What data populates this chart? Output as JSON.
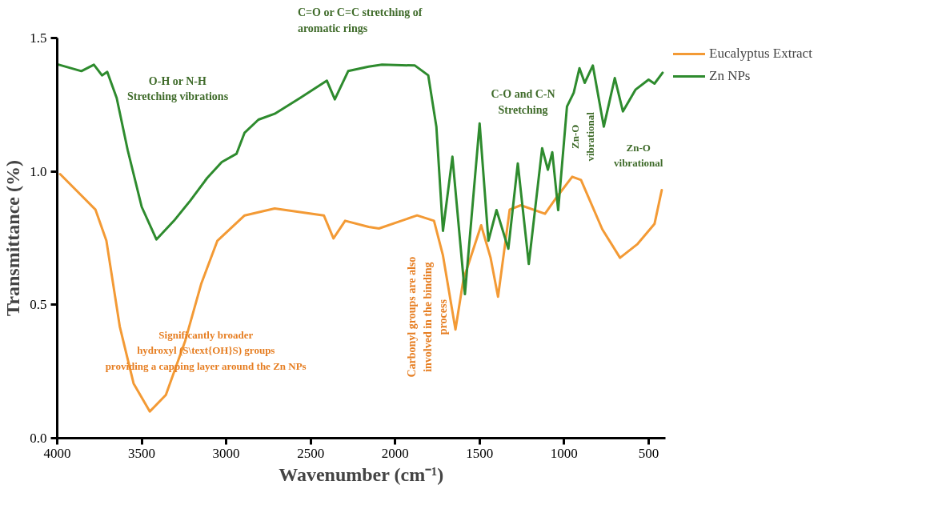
{
  "chart_data": {
    "type": "line",
    "xlabel": "Wavenumber (cm⁻¹)",
    "ylabel": "Transmittance (%)",
    "xlim": [
      4000,
      400
    ],
    "ylim": [
      0,
      1.5
    ],
    "xticks": [
      4000,
      3500,
      3000,
      2500,
      2000,
      1500,
      1000,
      500
    ],
    "yticks": [
      {
        "value": 0,
        "label": "0.0"
      },
      {
        "value": 0.5,
        "label": "0.5"
      },
      {
        "value": 1.0,
        "label": "1.0"
      },
      {
        "value": 1.5,
        "label": "1.5"
      }
    ],
    "grid": false,
    "legend": "top right",
    "line_style": "solid",
    "marker": "none",
    "series": [
      {
        "name": "Eucalyptus Extract",
        "color": "#f39a35",
        "x": [
          3983,
          3774,
          3709,
          3630,
          3548,
          3452,
          3357,
          3243,
          3148,
          3052,
          2891,
          2713,
          2422,
          2365,
          2296,
          2157,
          2096,
          1870,
          1770,
          1717,
          1643,
          1596,
          1491,
          1435,
          1391,
          1322,
          1256,
          1113,
          1048,
          952,
          900,
          774,
          669,
          565,
          465,
          422
        ],
        "values": [
          0.99,
          0.857,
          0.74,
          0.419,
          0.205,
          0.1,
          0.162,
          0.364,
          0.578,
          0.74,
          0.835,
          0.861,
          0.835,
          0.749,
          0.815,
          0.792,
          0.786,
          0.835,
          0.815,
          0.685,
          0.407,
          0.595,
          0.798,
          0.676,
          0.53,
          0.857,
          0.873,
          0.841,
          0.9,
          0.98,
          0.968,
          0.783,
          0.676,
          0.728,
          0.803,
          0.93
        ]
      },
      {
        "name": "Zn NPs",
        "color": "#2e8b2e",
        "x": [
          3990,
          3857,
          3783,
          3735,
          3704,
          3648,
          3583,
          3500,
          3413,
          3309,
          3213,
          3113,
          3026,
          2939,
          2891,
          2809,
          2713,
          2565,
          2404,
          2357,
          2278,
          2157,
          2078,
          1883,
          1804,
          1756,
          1717,
          1661,
          1587,
          1500,
          1448,
          1400,
          1330,
          1274,
          1209,
          1130,
          1096,
          1070,
          1035,
          983,
          943,
          909,
          878,
          830,
          765,
          700,
          652,
          578,
          500,
          465,
          417
        ],
        "values": [
          1.4,
          1.376,
          1.4,
          1.36,
          1.373,
          1.275,
          1.08,
          0.867,
          0.745,
          0.815,
          0.89,
          0.975,
          1.035,
          1.066,
          1.145,
          1.194,
          1.216,
          1.274,
          1.34,
          1.27,
          1.376,
          1.393,
          1.4,
          1.397,
          1.36,
          1.168,
          0.777,
          1.055,
          0.54,
          1.18,
          0.74,
          0.855,
          0.71,
          1.03,
          0.653,
          1.087,
          1.006,
          1.072,
          0.855,
          1.243,
          1.295,
          1.387,
          1.332,
          1.397,
          1.168,
          1.35,
          1.225,
          1.306,
          1.344,
          1.329,
          1.37
        ]
      }
    ],
    "annotations": [
      "O-H or N-H\nStretching vibrations",
      "Significantly broader\nhydroxyl (S\\text{OH}S) groups\nproviding a capping layer around the Zn NPs",
      "C=O  or C=C stretching of\naromatic rings",
      "C-O and C-N\nStretching",
      "Zn-O\nvibrational",
      "Zn-O vibrational",
      "Carbonyl groups are also\ninvolved in the binding\nprocess"
    ]
  }
}
